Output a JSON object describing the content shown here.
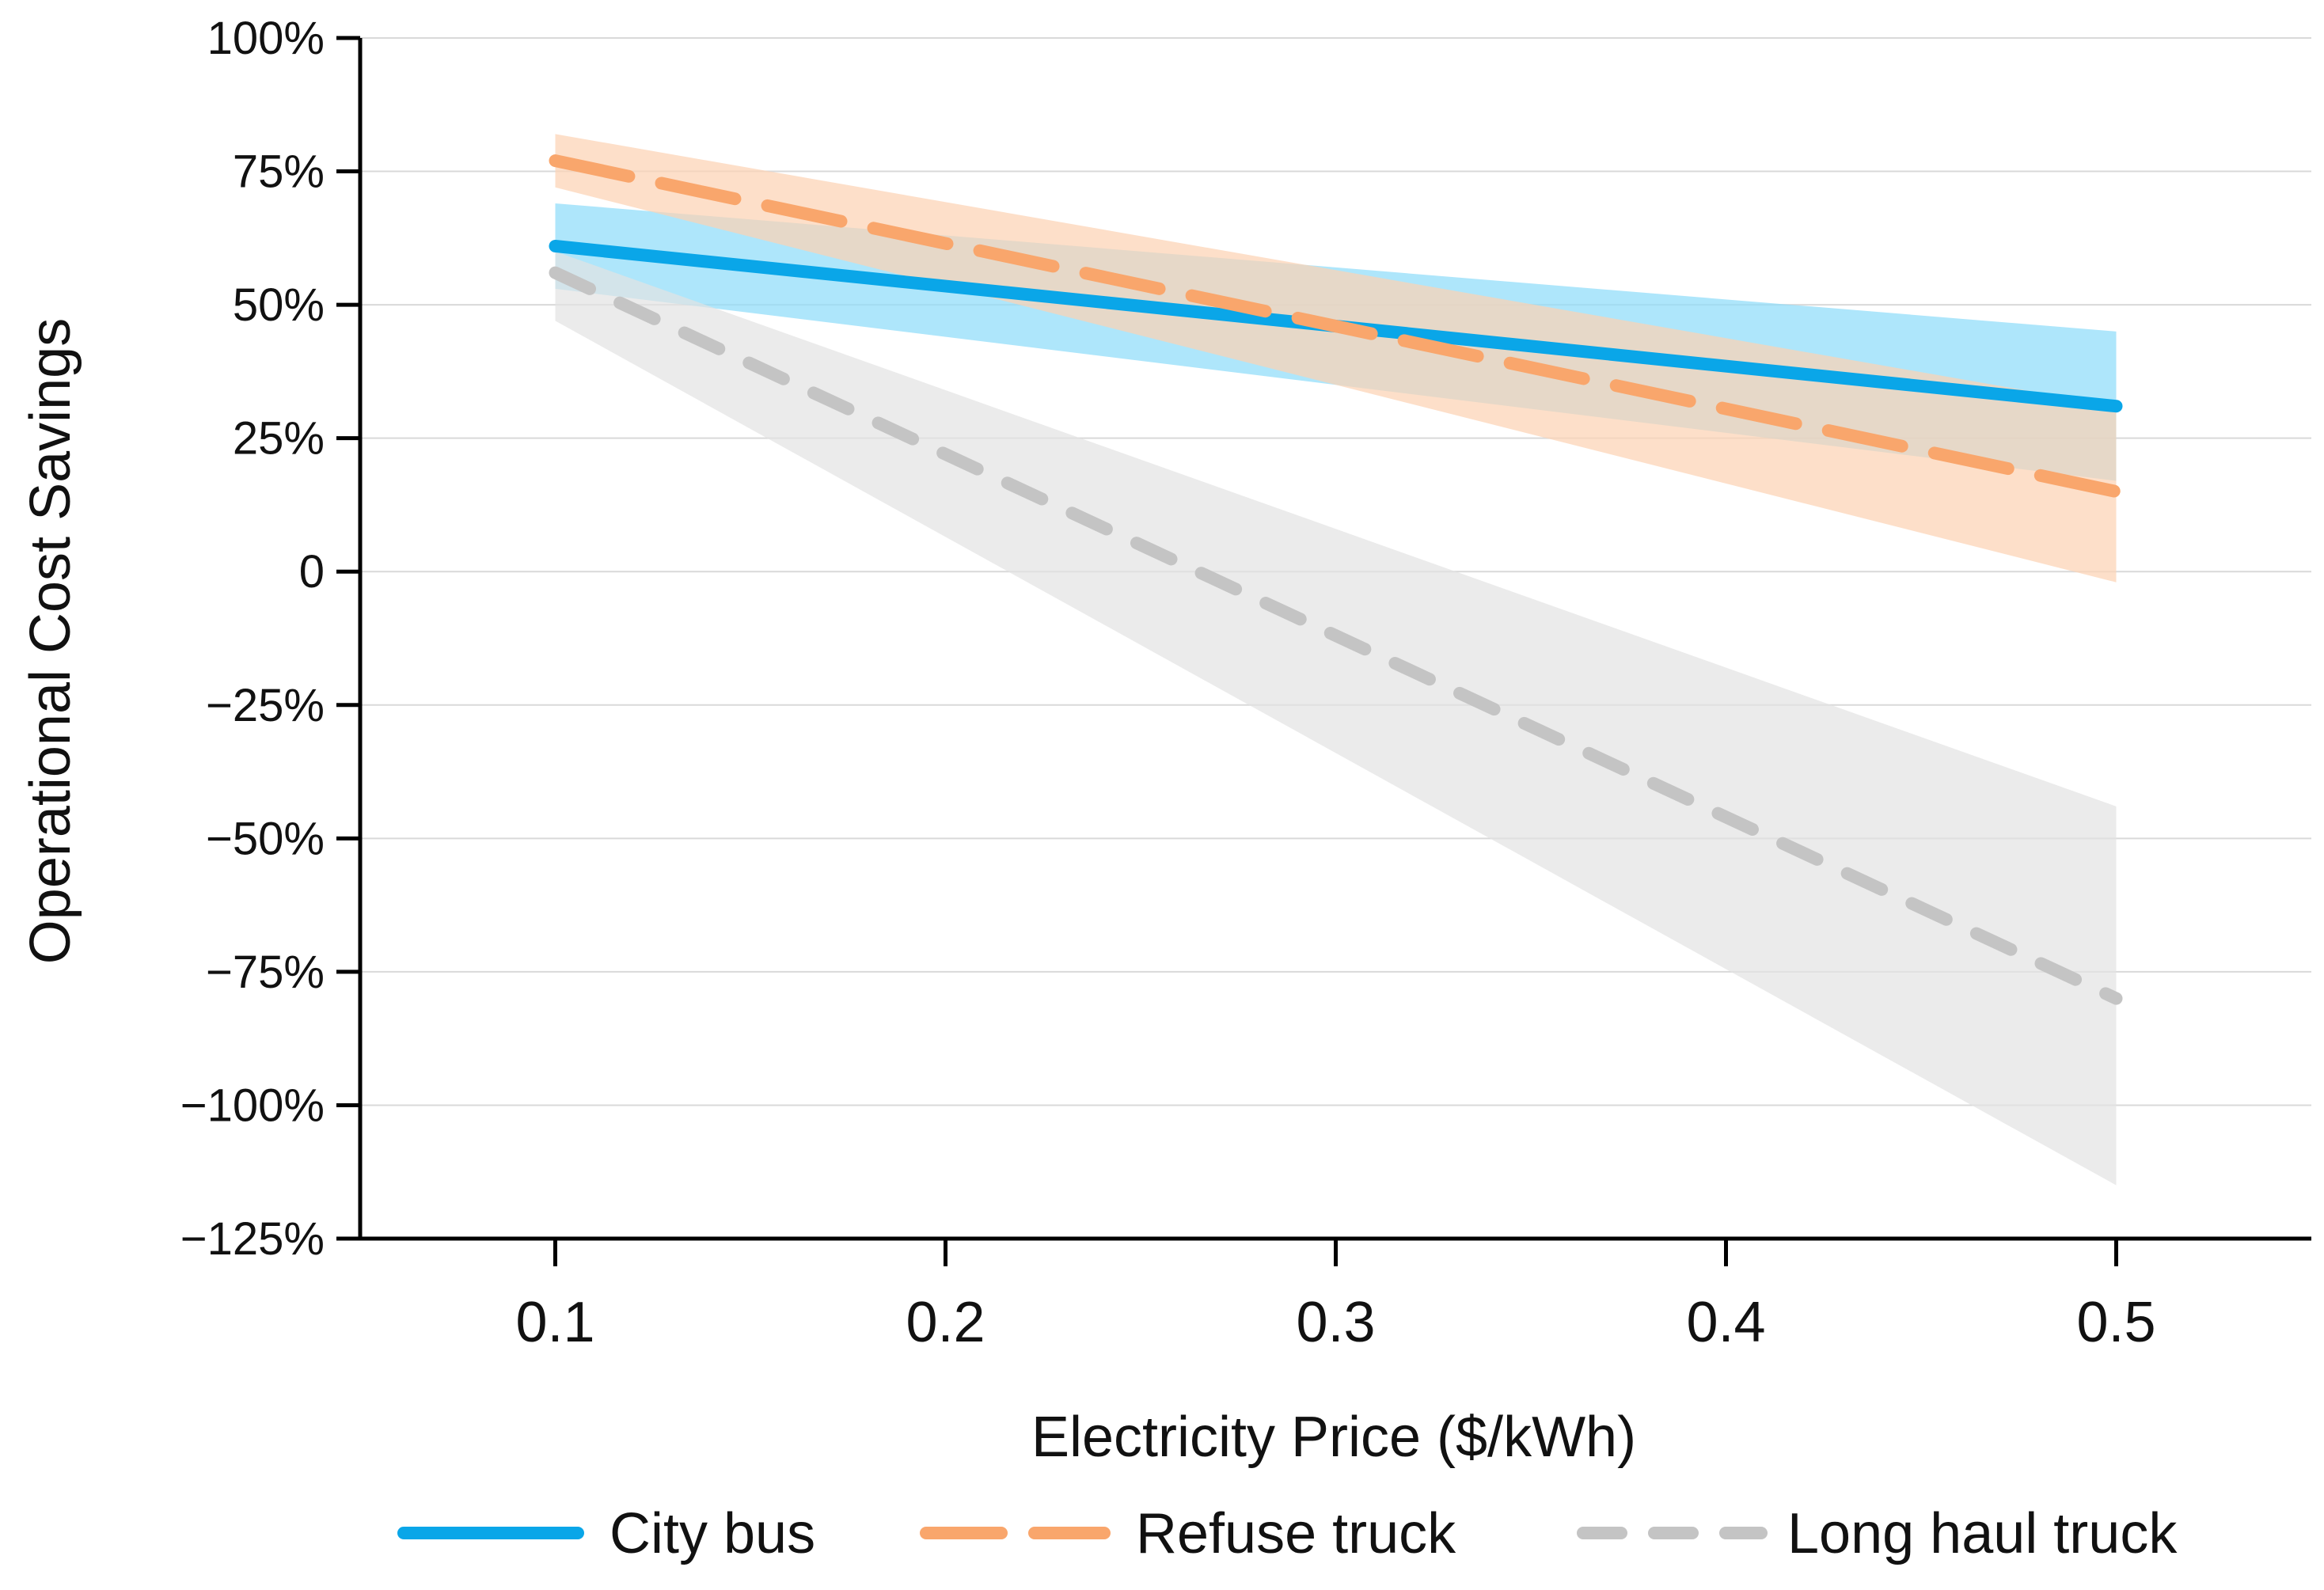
{
  "chart_data": {
    "type": "line",
    "title": "",
    "xlabel": "Electricity Price ($/kWh)",
    "ylabel": "Operational Cost Savings",
    "x": [
      0.1,
      0.5
    ],
    "xlim": [
      0.05,
      0.55
    ],
    "ylim": [
      -125,
      100
    ],
    "xticks": [
      0.1,
      0.2,
      0.3,
      0.4,
      0.5
    ],
    "xtick_labels": [
      "0.1",
      "0.2",
      "0.3",
      "0.4",
      "0.5"
    ],
    "yticks": [
      -125,
      -100,
      -75,
      -50,
      -25,
      0,
      25,
      50,
      75,
      100
    ],
    "ytick_labels": [
      "−125%",
      "−100%",
      "−75%",
      "−50%",
      "−25%",
      "0",
      "25%",
      "50%",
      "75%",
      "100%"
    ],
    "grid": "horizontal",
    "legend_position": "bottom",
    "series": [
      {
        "name": "City bus",
        "values": [
          61,
          31
        ],
        "band_lower": [
          53,
          17
        ],
        "band_upper": [
          69,
          45
        ],
        "color": "#0aa6e8",
        "band_color": "#8fdcfa",
        "style": "solid"
      },
      {
        "name": "Refuse truck",
        "values": [
          77,
          15
        ],
        "band_lower": [
          72,
          -2
        ],
        "band_upper": [
          82,
          31
        ],
        "color": "#f9a66c",
        "band_color": "#fcd2b4",
        "style": "dashed"
      },
      {
        "name": "Long haul truck",
        "values": [
          56,
          -80
        ],
        "band_lower": [
          47,
          -115
        ],
        "band_upper": [
          60,
          -44
        ],
        "color": "#c4c4c4",
        "band_color": "#e3e3e3",
        "style": "dotted-dash"
      }
    ]
  }
}
